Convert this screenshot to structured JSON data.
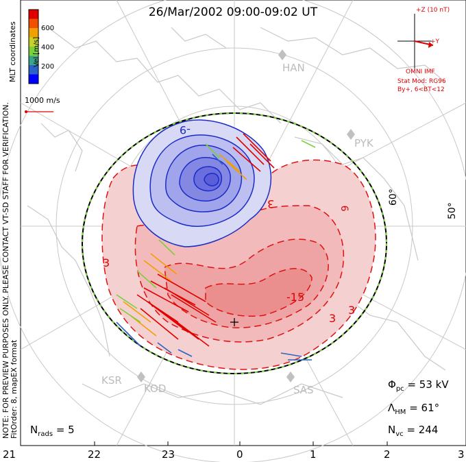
{
  "title": "26/Mar/2002 09:00-09:02 UT",
  "color_bar": {
    "label": "Vel [m/s]",
    "ticks": [
      "600",
      "400",
      "200"
    ],
    "colors": [
      "#0000ff",
      "#2a62c8",
      "#3aa48a",
      "#7ad13a",
      "#c8d12a",
      "#f0a000",
      "#f05000",
      "#e00000"
    ]
  },
  "side_text": {
    "coords": "MLT coordinates",
    "note": "NOTE: FOR PREVIEW PURPOSES ONLY. PLEASE CONTACT VT-SD STAFF FOR VERIFICATION.",
    "fit": "FitOrder: 8, mapEX format"
  },
  "scale_vector": "1000 m/s",
  "imf": {
    "z": "+Z (10 nT)",
    "y": "+Y",
    "source": "OMNI IMF",
    "model": "Stat Mod: RG96",
    "conditions": "By+, 6<BT<12"
  },
  "stations": [
    "HAN",
    "PYK",
    "KSR",
    "KOD",
    "SAS"
  ],
  "lat_labels": [
    "60°",
    "50°"
  ],
  "contour_labels": {
    "neg": "-9",
    "pos_small_1": "3",
    "pos_small_2": "3",
    "pos_small_3": "3",
    "pos_mid": "-15",
    "pos_big": "3",
    "mid_dash": "9"
  },
  "stats": {
    "phi_sym": "Φ",
    "phi_sub": "pc",
    "phi_val": "= 53 kV",
    "lam_sym": "Λ",
    "lam_sub": "HM",
    "lam_val": "= 61°",
    "nvc_sym": "N",
    "nvc_sub": "vc",
    "nvc_val": "= 244",
    "nrads_sym": "N",
    "nrads_sub": "rads",
    "nrads_val": "= 5"
  },
  "mlt_axis": [
    "21",
    "22",
    "23",
    "0",
    "1",
    "2",
    "3"
  ],
  "colors": {
    "neg": "#1a2bc8",
    "pos": "#e01010",
    "boundary": "#000000",
    "boundary_dash": "#7ad13a"
  }
}
